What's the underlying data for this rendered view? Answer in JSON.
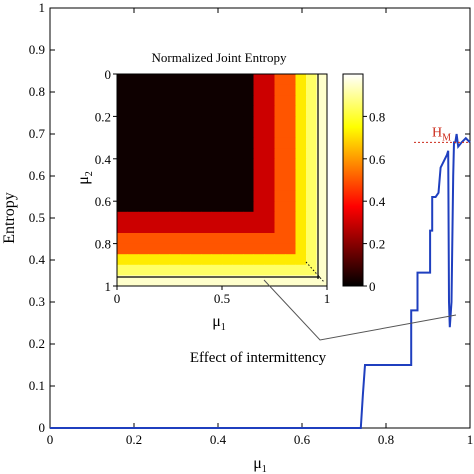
{
  "chart_data": [
    {
      "type": "line",
      "xlabel": "μ",
      "xlabel_sub": "1",
      "ylabel": "Entropy",
      "xlim": [
        0,
        1
      ],
      "ylim": [
        0,
        1
      ],
      "xticks": [
        "0",
        "0.2",
        "0.4",
        "0.6",
        "0.8",
        "1"
      ],
      "yticks": [
        "0",
        "0.1",
        "0.2",
        "0.3",
        "0.4",
        "0.5",
        "0.6",
        "0.7",
        "0.8",
        "0.9",
        "1"
      ],
      "line_color": "#1f3fbf",
      "series": [
        {
          "x": [
            0,
            0.74,
            0.745,
            0.75,
            0.82,
            0.86,
            0.86,
            0.875,
            0.875,
            0.905,
            0.905,
            0.91,
            0.91,
            0.918,
            0.925,
            0.93,
            0.935,
            0.94,
            0.945,
            0.948,
            0.95,
            0.952,
            0.956,
            0.96,
            0.962,
            0.965,
            0.968,
            0.972,
            0.98,
            0.99,
            1.0
          ],
          "y": [
            0,
            0,
            0.08,
            0.15,
            0.15,
            0.15,
            0.28,
            0.28,
            0.37,
            0.37,
            0.47,
            0.47,
            0.55,
            0.55,
            0.56,
            0.62,
            0.63,
            0.64,
            0.65,
            0.66,
            0.3,
            0.24,
            0.3,
            0.6,
            0.68,
            0.68,
            0.7,
            0.67,
            0.68,
            0.69,
            0.68
          ]
        }
      ],
      "annotations": {
        "hm_label": "H",
        "hm_sub": "M",
        "hm_value": 0.68,
        "hm_color": "#cc2a1a",
        "callout": "Effect of intermittency"
      }
    },
    {
      "type": "heatmap",
      "title": "Normalized Joint Entropy",
      "xlabel": "μ",
      "xlabel_sub": "1",
      "ylabel": "μ",
      "ylabel_sub": "2",
      "xticks": [
        "0",
        "0.5",
        "1"
      ],
      "yticks": [
        "0",
        "0.2",
        "0.4",
        "0.6",
        "0.8",
        "1"
      ],
      "colorbar_ticks": [
        "0",
        "0.2",
        "0.4",
        "0.6",
        "0.8"
      ],
      "colorbar_range": [
        0,
        1
      ],
      "colormap": "hot",
      "grid_size": 20,
      "level_thresholds": [
        13,
        15,
        17,
        18,
        19
      ],
      "level_values": [
        0.02,
        0.3,
        0.5,
        0.72,
        0.85,
        0.95
      ]
    }
  ]
}
